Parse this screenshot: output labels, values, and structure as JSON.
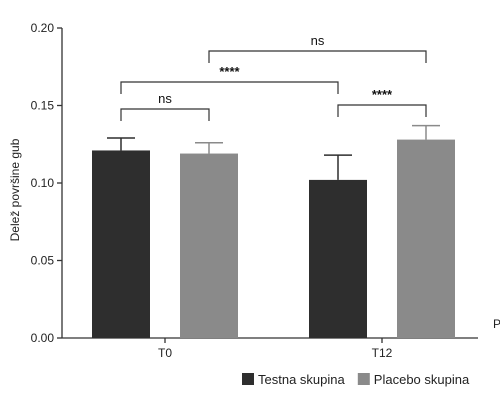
{
  "chart_data": {
    "type": "bar",
    "ylabel": "Delež površine gub",
    "xlabel": "",
    "ylim": [
      0,
      0.2
    ],
    "yticks": [
      "0.00",
      "0.05",
      "0.10",
      "0.15",
      "0.20"
    ],
    "categories": [
      "T0",
      "T12"
    ],
    "series": [
      {
        "name": "Testna skupina",
        "values": [
          0.121,
          0.102
        ],
        "errors": [
          0.008,
          0.016
        ],
        "color": "#2e2e2e"
      },
      {
        "name": "Placebo skupina",
        "values": [
          0.119,
          0.128
        ],
        "errors": [
          0.007,
          0.009
        ],
        "color": "#8a8a8a"
      }
    ],
    "significance": [
      {
        "label": "ns",
        "between": "T0 Testna skupina vs T0 Placebo skupina"
      },
      {
        "label": "****",
        "between": "T0 Testna skupina vs T12 Testna skupina"
      },
      {
        "label": "ns",
        "between": "T0 Placebo skupina vs T12 Placebo skupina"
      },
      {
        "label": "****",
        "between": "T12 Testna skupina vs T12 Placebo skupina"
      }
    ],
    "cut_text": "P",
    "legend_position": "bottom-right",
    "grid": false
  }
}
